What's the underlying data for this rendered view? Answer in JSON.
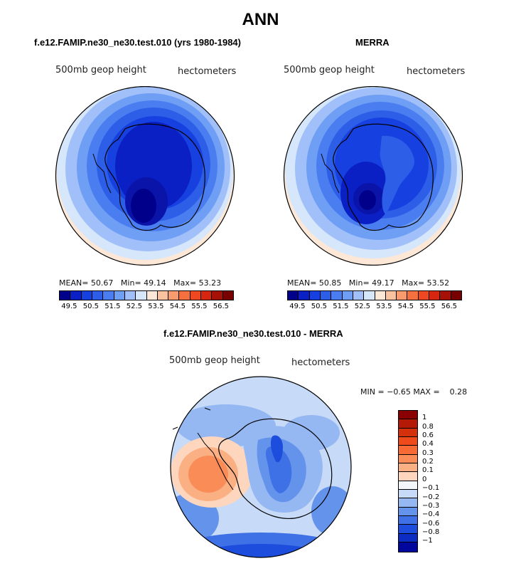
{
  "main_title": "ANN",
  "panels": [
    {
      "title": "f.e12.FAMIP.ne30_ne30.test.010 (yrs 1980-1984)",
      "variable": "500mb geop height",
      "units": "hectometers",
      "stats": {
        "mean_label": "MEAN=",
        "mean": "50.67",
        "min_label": "Min=",
        "min": "49.14",
        "max_label": "Max=",
        "max": "53.23"
      }
    },
    {
      "title": "MERRA",
      "variable": "500mb geop height",
      "units": "hectometers",
      "stats": {
        "mean_label": "MEAN=",
        "mean": "50.85",
        "min_label": "Min=",
        "min": "49.17",
        "max_label": "Max=",
        "max": "53.52"
      }
    }
  ],
  "abs_colorbar": {
    "colors": [
      "#00008b",
      "#0a1fc4",
      "#1740e0",
      "#2d5ee8",
      "#4a7ef0",
      "#6f9ef5",
      "#a1c0fa",
      "#d6e6fb",
      "#fde8d8",
      "#fbc2a0",
      "#f99a6f",
      "#f5703f",
      "#ef4722",
      "#d62610",
      "#a51007",
      "#780000"
    ],
    "ticks": [
      "49.5",
      "50.5",
      "51.5",
      "52.5",
      "53.5",
      "54.5",
      "55.5",
      "56.5"
    ]
  },
  "diff_panel": {
    "title": "f.e12.FAMIP.ne30_ne30.test.010 - MERRA",
    "variable": "500mb geop height",
    "units": "hectometers",
    "min_label": "MIN =",
    "min": "−0.65",
    "max_label": "MAX =",
    "max": "0.28"
  },
  "diff_colorbar": {
    "colors": [
      "#8b0000",
      "#b31b06",
      "#d4300c",
      "#ef4a1b",
      "#f86a35",
      "#fa8c58",
      "#fbb084",
      "#fdd6bd",
      "#f3f7fb",
      "#c7daf7",
      "#95b7f2",
      "#6493ec",
      "#3e70e6",
      "#1d4ddc",
      "#0b2dc4",
      "#01079c"
    ],
    "ticks": [
      "1",
      "0.8",
      "0.6",
      "0.4",
      "0.3",
      "0.2",
      "0.1",
      "0",
      "−0.1",
      "−0.2",
      "−0.3",
      "−0.4",
      "−0.6",
      "−0.8",
      "−1"
    ]
  }
}
